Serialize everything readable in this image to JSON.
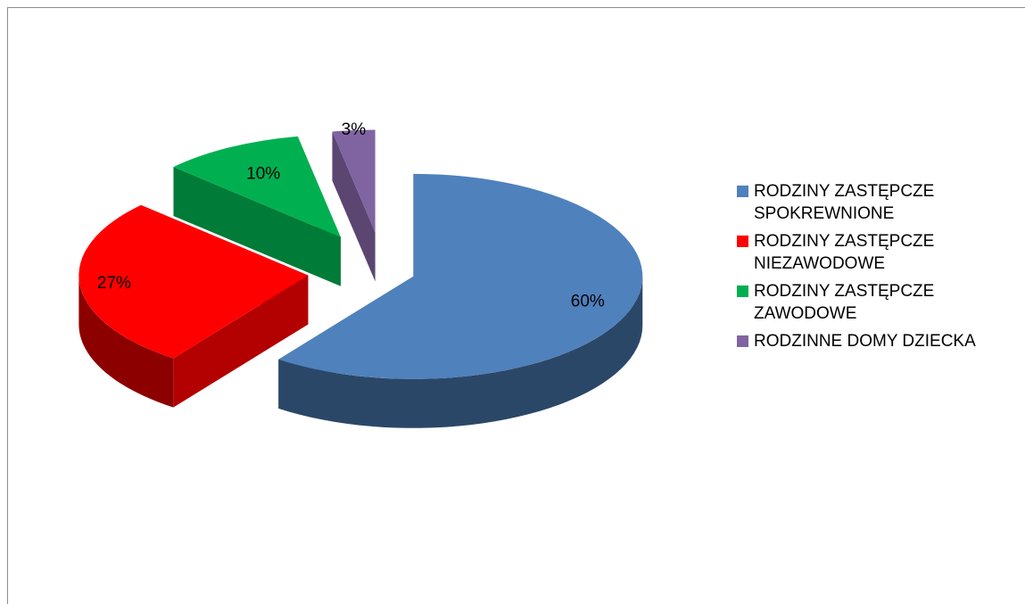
{
  "chart_data": {
    "type": "pie3d",
    "categories": [
      "RODZINY ZASTĘPCZE SPOKREWNIONE",
      "RODZINY ZASTĘPCZE NIEZAWODOWE",
      "RODZINY ZASTĘPCZE ZAWODOWE",
      "RODZINNE DOMY DZIECKA"
    ],
    "values": [
      60,
      27,
      10,
      3
    ],
    "value_labels": [
      "60%",
      "27%",
      "10%",
      "3%"
    ],
    "colors": [
      "#4f81bd",
      "#ff0000",
      "#00b050",
      "#8064a2"
    ],
    "legend": "right"
  }
}
